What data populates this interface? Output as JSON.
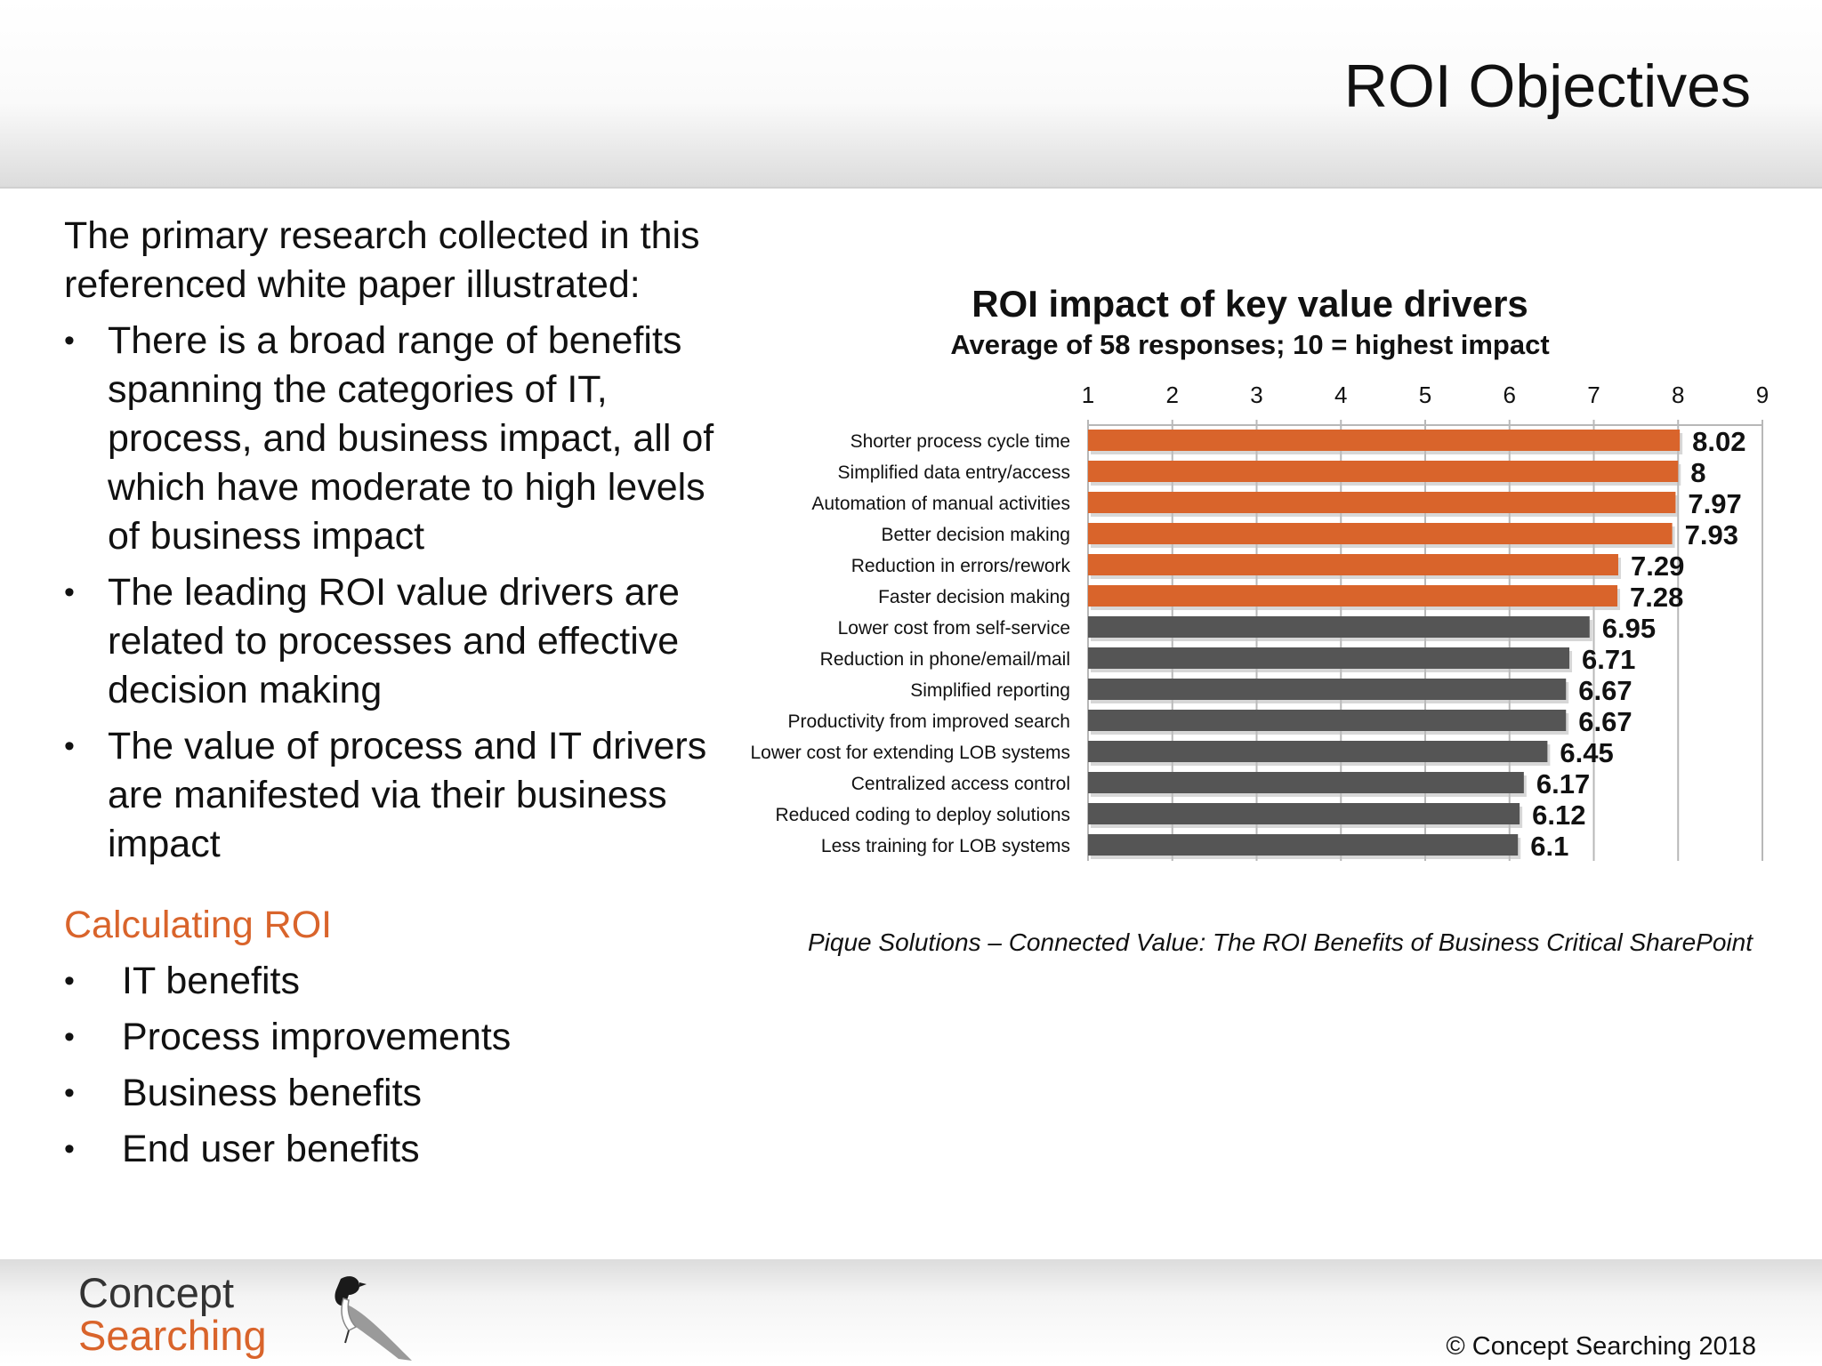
{
  "header": {
    "title": "ROI Objectives"
  },
  "left": {
    "intro": "The primary research collected in this referenced white paper illustrated:",
    "bullets": [
      "There is a broad range of benefits spanning the categories of IT, process, and business impact, all of which have moderate to high levels of business impact",
      "The leading ROI value drivers are related to processes and effective decision making",
      "The value of process and IT drivers are manifested via their business impact"
    ],
    "section_title": "Calculating ROI",
    "items": [
      "IT benefits",
      "Process improvements",
      "Business benefits",
      "End user benefits"
    ]
  },
  "colors": {
    "accent": "#d9642b",
    "bar_gray": "#555555",
    "logo_orange": "#d9642b"
  },
  "chart_data": {
    "type": "bar",
    "orientation": "horizontal",
    "title": "ROI impact of key value drivers",
    "subtitle": "Average of 58 responses; 10 = highest impact",
    "categories": [
      "Shorter process cycle time",
      "Simplified data entry/access",
      "Automation of manual activities",
      "Better decision making",
      "Reduction in errors/rework",
      "Faster decision making",
      "Lower cost from self-service",
      "Reduction in phone/email/mail",
      "Simplified reporting",
      "Productivity from improved search",
      "Lower cost for extending LOB systems",
      "Centralized access control",
      "Reduced coding to deploy solutions",
      "Less training for LOB systems"
    ],
    "values": [
      8.02,
      8,
      7.97,
      7.93,
      7.29,
      7.28,
      6.95,
      6.71,
      6.67,
      6.67,
      6.45,
      6.17,
      6.12,
      6.1
    ],
    "value_labels": [
      "8.02",
      "8",
      "7.97",
      "7.93",
      "7.29",
      "7.28",
      "6.95",
      "6.71",
      "6.67",
      "6.67",
      "6.45",
      "6.17",
      "6.12",
      "6.1"
    ],
    "highlighted_count": 6,
    "xlim": [
      1,
      9
    ],
    "xticks": [
      "1",
      "2",
      "3",
      "4",
      "5",
      "6",
      "7",
      "8",
      "9"
    ],
    "x_axis_position": "top",
    "grid": true,
    "legend": "none"
  },
  "source": "Pique Solutions – Connected Value: The ROI Benefits of Business Critical SharePoint",
  "footer": {
    "logo_line1": "Concept",
    "logo_line2": "Searching",
    "copyright": "© Concept Searching 2018"
  }
}
